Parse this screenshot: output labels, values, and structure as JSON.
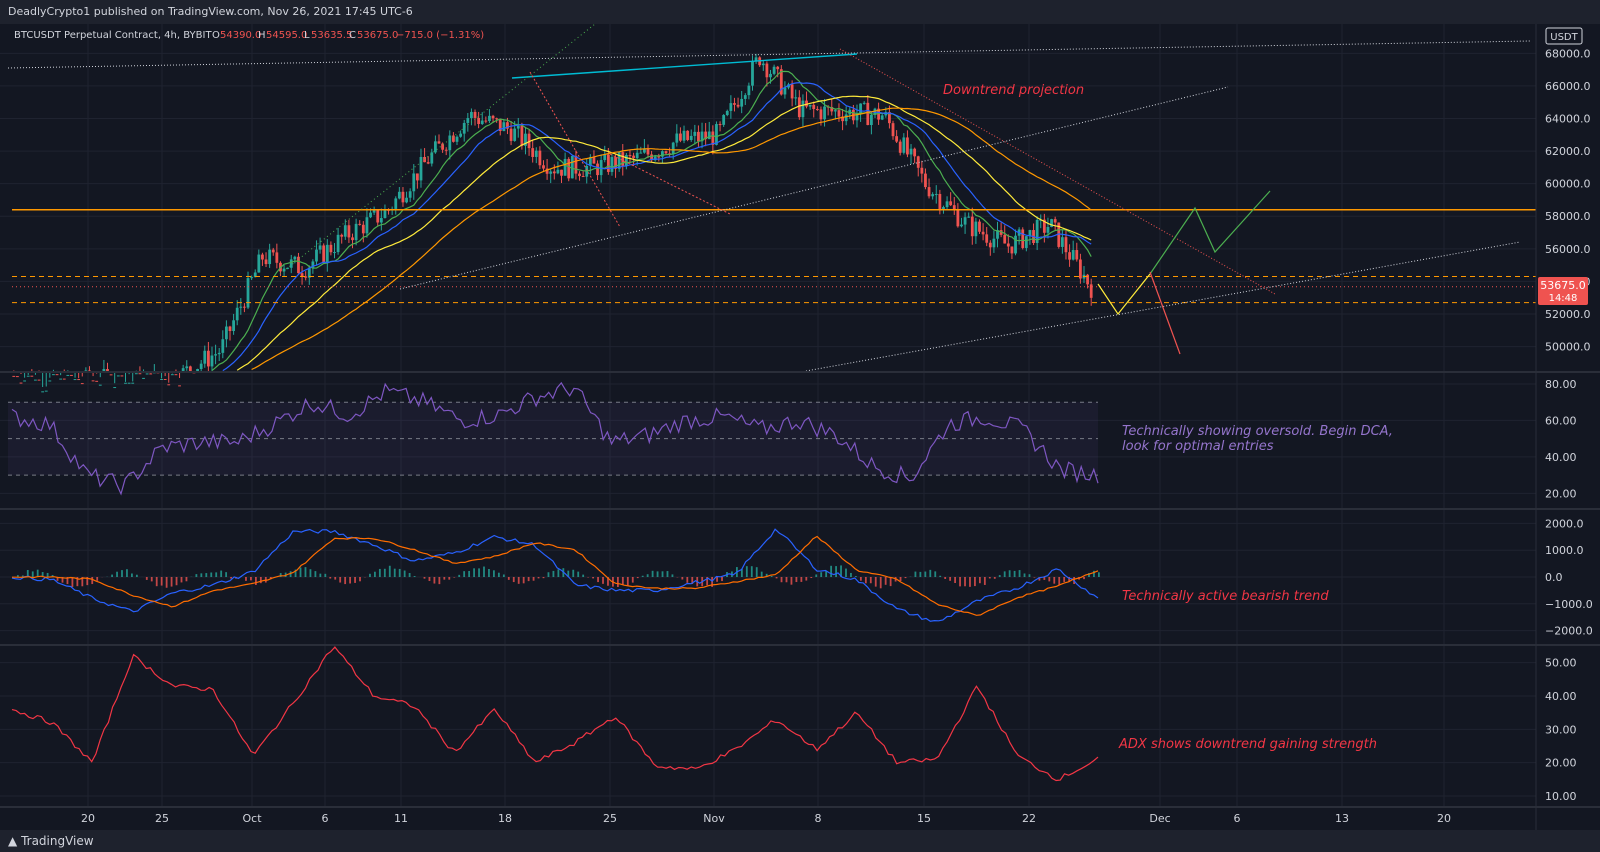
{
  "header": {
    "published": "DeadlyCrypto1 published on TradingView.com, Nov 26, 2021 17:45 UTC-6"
  },
  "footer": {
    "brand": "TradingView"
  },
  "legend": {
    "symbol": "BTCUSDT Perpetual Contract, 4h, BYBIT",
    "o_label": "O",
    "o": "54390.0",
    "h_label": "H",
    "h": "54595.0",
    "l_label": "L",
    "l": "53635.5",
    "c_label": "C",
    "c": "53675.0",
    "change": "−715.0 (−1.31%)"
  },
  "currency": "USDT",
  "price_tag": {
    "value": "53675.0",
    "countdown": "14:48"
  },
  "colors": {
    "up": "#26a69a",
    "down": "#ef5350",
    "rsi": "#7e57c2",
    "macd": "#2962ff",
    "signal": "#ff6d00",
    "adx": "#f23645",
    "level": "#ff9800"
  },
  "chart_data": [
    {
      "type": "candlestick",
      "title": "BTCUSDT Perpetual Contract, 4h, BYBIT",
      "x_ticks": [
        "20",
        "25",
        "Oct",
        "6",
        "11",
        "18",
        "25",
        "Nov",
        "8",
        "15",
        "22",
        "Dec",
        "6",
        "13",
        "20"
      ],
      "y_ticks": [
        "68000.0",
        "66000.0",
        "64000.0",
        "62000.0",
        "60000.0",
        "58000.0",
        "56000.0",
        "54000.0",
        "52000.0",
        "50000.0"
      ],
      "ylim": [
        48500,
        69800
      ],
      "series": [
        {
          "name": "BTCUSDT",
          "x": [
            "Sep 15",
            "Sep 20",
            "Sep 25",
            "Sep 29",
            "Oct 2",
            "Oct 5",
            "Oct 6",
            "Oct 8",
            "Oct 11",
            "Oct 14",
            "Oct 17",
            "Oct 20",
            "Oct 22",
            "Oct 25",
            "Oct 28",
            "Nov 1",
            "Nov 4",
            "Nov 7",
            "Nov 9",
            "Nov 11",
            "Nov 13",
            "Nov 15",
            "Nov 17",
            "Nov 19",
            "Nov 22",
            "Nov 24",
            "Nov 26"
          ],
          "close": [
            48200,
            47600,
            48000,
            47800,
            48200,
            49800,
            55500,
            54800,
            56800,
            58300,
            61500,
            64200,
            63300,
            61000,
            61000,
            61500,
            62600,
            63000,
            67800,
            64500,
            64400,
            64200,
            60000,
            57500,
            56200,
            57500,
            53675
          ]
        }
      ],
      "levels": [
        58400,
        54300,
        53675,
        52700
      ],
      "annotations": [
        "Downtrend projection"
      ]
    },
    {
      "type": "line",
      "title": "RSI",
      "y_ticks": [
        "80.00",
        "60.00",
        "40.00",
        "20.00"
      ],
      "ylim": [
        12,
        86
      ],
      "bands": [
        70,
        50,
        30
      ],
      "series": [
        {
          "name": "RSI",
          "values": [
            62,
            58,
            30,
            24,
            45,
            48,
            48,
            58,
            70,
            63,
            76,
            70,
            60,
            63,
            73,
            78,
            48,
            52,
            60,
            62,
            55,
            60,
            52,
            35,
            28,
            58,
            62,
            55,
            33,
            30
          ]
        }
      ],
      "annotations": [
        "Technically showing oversold. Begin DCA,",
        "look for optimal entries"
      ]
    },
    {
      "type": "line",
      "title": "MACD",
      "y_ticks": [
        "2000.0",
        "1000.0",
        "0.0",
        "−1000.0",
        "−2000.0"
      ],
      "ylim": [
        -2500,
        2500
      ],
      "series": [
        {
          "name": "MACD",
          "values": [
            0,
            -100,
            -800,
            -1300,
            -600,
            -300,
            200,
            1700,
            1700,
            1200,
            600,
            900,
            1500,
            1200,
            -300,
            -500,
            -500,
            -200,
            100,
            1800,
            300,
            -100,
            -1200,
            -1700,
            -900,
            -400,
            300,
            -800
          ]
        }
      ],
      "annotations": [
        "Technically active bearish trend"
      ]
    },
    {
      "type": "line",
      "title": "ADX",
      "y_ticks": [
        "50.00",
        "40.00",
        "30.00",
        "20.00",
        "10.00"
      ],
      "ylim": [
        7,
        55
      ],
      "series": [
        {
          "name": "ADX",
          "values": [
            36,
            32,
            20,
            52,
            43,
            42,
            22,
            38,
            55,
            40,
            37,
            23,
            36,
            20,
            26,
            34,
            19,
            18,
            24,
            33,
            24,
            35,
            20,
            21,
            43,
            22,
            15,
            21
          ]
        }
      ],
      "annotations": [
        "ADX shows downtrend gaining strength"
      ]
    }
  ]
}
